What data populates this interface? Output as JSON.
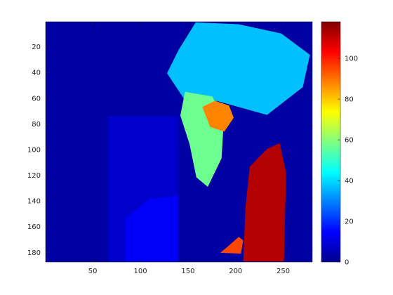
{
  "chart_data": {
    "type": "heatmap",
    "title": "",
    "xlabel": "",
    "ylabel": "",
    "colormap": "jet",
    "image_size": {
      "columns": 280,
      "rows": 187
    },
    "xlim": [
      0.5,
      280.5
    ],
    "ylim": [
      0.5,
      187.5
    ],
    "y_direction": "reverse",
    "x_ticks": [
      50,
      100,
      150,
      200,
      250
    ],
    "x_tick_labels": [
      "50",
      "100",
      "150",
      "200",
      "250"
    ],
    "y_ticks": [
      20,
      40,
      60,
      80,
      100,
      120,
      140,
      160,
      180
    ],
    "y_tick_labels": [
      "20",
      "40",
      "60",
      "80",
      "100",
      "120",
      "140",
      "160",
      "180"
    ],
    "color_limits": [
      0,
      118
    ],
    "colorbar": {
      "ticks": [
        0,
        20,
        40,
        60,
        80,
        100
      ],
      "tick_labels": [
        "0",
        "20",
        "40",
        "60",
        "80",
        "100"
      ],
      "location": "right"
    },
    "regions": [
      {
        "name": "background",
        "value": 4
      },
      {
        "name": "hair",
        "value": 37,
        "x_range": [
          128,
          278
        ],
        "y_range": [
          1,
          73
        ]
      },
      {
        "name": "glasses",
        "value": 88,
        "x_range": [
          165,
          198
        ],
        "y_range": [
          62,
          86
        ]
      },
      {
        "name": "face",
        "value": 57,
        "x_range": [
          142,
          190
        ],
        "y_range": [
          55,
          129
        ]
      },
      {
        "name": "hand",
        "value": 112,
        "x_range": [
          208,
          253
        ],
        "y_range": [
          95,
          187
        ]
      },
      {
        "name": "lower-left body",
        "value": 14,
        "x_range": [
          84,
          140
        ],
        "y_range": [
          136,
          187
        ]
      },
      {
        "name": "wall panel",
        "value": 9,
        "x_range": [
          66,
          140
        ],
        "y_range": [
          74,
          187
        ]
      },
      {
        "name": "collar",
        "value": 95,
        "x_range": [
          184,
          208
        ],
        "y_range": [
          168,
          181
        ]
      }
    ]
  }
}
